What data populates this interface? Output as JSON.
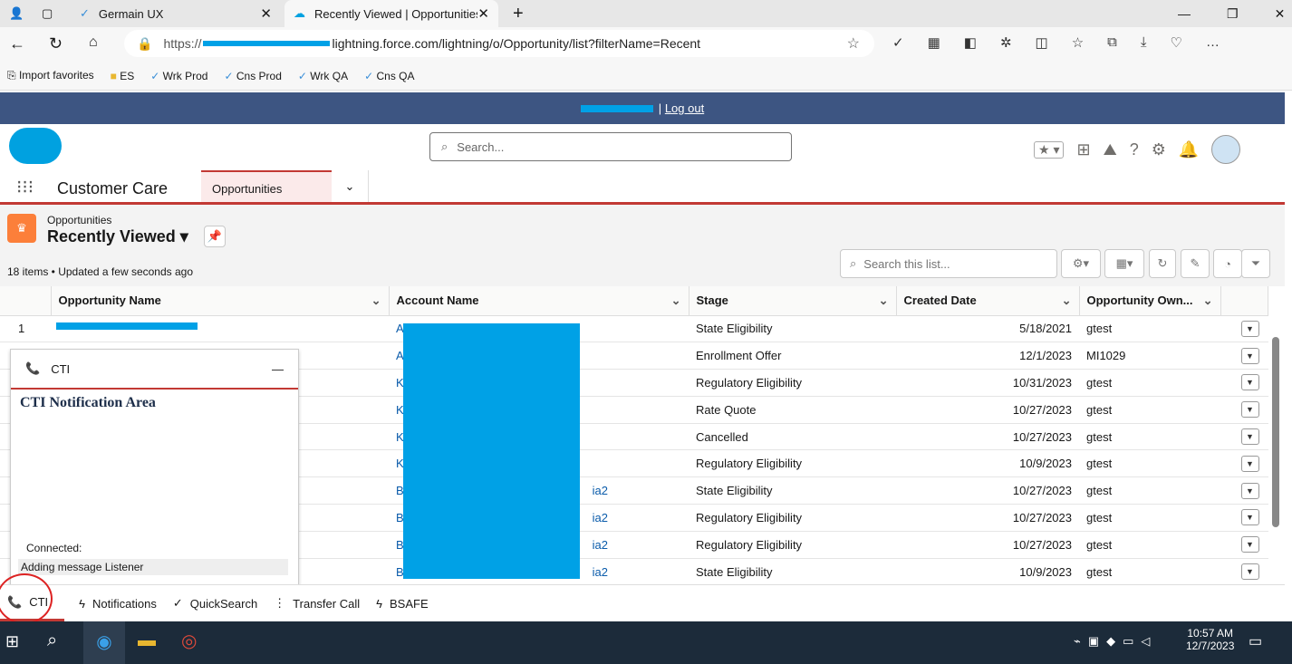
{
  "browser": {
    "tabs": [
      {
        "label": "Germain UX"
      },
      {
        "label": "Recently Viewed | Opportunities |"
      }
    ],
    "url_prefix": "https://",
    "url_rest": "lightning.force.com/lightning/o/Opportunity/list?filterName=Recent",
    "favorites": [
      "Import favorites",
      "ES",
      "Wrk Prod",
      "Cns Prod",
      "Wrk QA",
      "Cns QA"
    ]
  },
  "sfbar": {
    "logout": "Log out",
    "sep": "|"
  },
  "header": {
    "search_placeholder": "Search..."
  },
  "nav": {
    "app": "Customer Care",
    "tab": "Opportunities"
  },
  "list": {
    "object": "Opportunities",
    "view": "Recently Viewed",
    "status": "18 items • Updated a few seconds ago",
    "search_placeholder": "Search this list..."
  },
  "table": {
    "columns": [
      "Opportunity Name",
      "Account Name",
      "Stage",
      "Created Date",
      "Opportunity Own..."
    ],
    "rows": [
      {
        "n": "1",
        "acct": "A",
        "acct_tail": "",
        "stage": "State Eligibility",
        "date": "5/18/2021",
        "owner": "gtest"
      },
      {
        "n": "",
        "acct": "A",
        "acct_tail": "",
        "stage": "Enrollment Offer",
        "date": "12/1/2023",
        "owner": "MI1029"
      },
      {
        "n": "",
        "acct": "K",
        "acct_tail": "",
        "stage": "Regulatory Eligibility",
        "date": "10/31/2023",
        "owner": "gtest"
      },
      {
        "n": "",
        "acct": "K",
        "acct_tail": "",
        "stage": "Rate Quote",
        "date": "10/27/2023",
        "owner": "gtest"
      },
      {
        "n": "",
        "acct": "K",
        "acct_tail": "",
        "stage": "Cancelled",
        "date": "10/27/2023",
        "owner": "gtest"
      },
      {
        "n": "",
        "acct": "K",
        "acct_tail": "",
        "stage": "Regulatory Eligibility",
        "date": "10/9/2023",
        "owner": "gtest"
      },
      {
        "n": "",
        "acct": "B",
        "acct_tail": "ia2",
        "stage": "State Eligibility",
        "date": "10/27/2023",
        "owner": "gtest"
      },
      {
        "n": "",
        "acct": "B",
        "acct_tail": "ia2",
        "stage": "Regulatory Eligibility",
        "date": "10/27/2023",
        "owner": "gtest"
      },
      {
        "n": "",
        "acct": "B",
        "acct_tail": "ia2",
        "stage": "Regulatory Eligibility",
        "date": "10/27/2023",
        "owner": "gtest"
      },
      {
        "n": "",
        "acct": "B",
        "acct_tail": "ia2",
        "stage": "State Eligibility",
        "date": "10/9/2023",
        "owner": "gtest"
      }
    ]
  },
  "cti": {
    "title": "CTI",
    "heading": "CTI Notification Area",
    "connected": "Connected:",
    "message": "Adding message Listener"
  },
  "utility": [
    "CTI",
    "Notifications",
    "QuickSearch",
    "Transfer Call",
    "BSAFE"
  ],
  "taskbar": {
    "time": "10:57 AM",
    "date": "12/7/2023"
  },
  "colors": {
    "brand": "#00a1e0",
    "accent": "#c23934",
    "redaction": "#00a1e6"
  }
}
